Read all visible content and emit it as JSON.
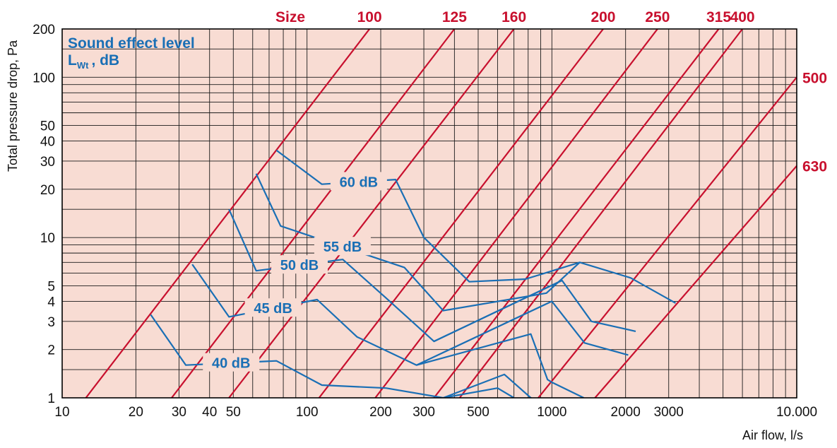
{
  "chart_data": {
    "type": "line",
    "title": "",
    "xlabel": "Air flow, l/s",
    "ylabel": "Total pressure drop, Pa",
    "xscale": "log",
    "yscale": "log",
    "xlim": [
      10,
      10000
    ],
    "ylim": [
      1,
      200
    ],
    "grid": true,
    "background_color": "#f8dcd3",
    "x_ticks": [
      10,
      20,
      30,
      40,
      50,
      100,
      200,
      300,
      500,
      1000,
      2000,
      3000,
      10000
    ],
    "x_tick_labels": [
      "10",
      "20",
      "30",
      "40",
      "50",
      "100",
      "200",
      "300",
      "500",
      "1000",
      "2000",
      "3000",
      "10.000"
    ],
    "y_ticks": [
      1,
      2,
      3,
      4,
      5,
      10,
      20,
      30,
      40,
      50,
      100,
      200
    ],
    "y_tick_labels": [
      "1",
      "2",
      "3",
      "4",
      "5",
      "10",
      "20",
      "30",
      "40",
      "50",
      "100",
      "200"
    ],
    "legend": {
      "line1": "Sound effect level",
      "line2_main": "L",
      "line2_sub": "Wt",
      "line2_rest": ", dB"
    },
    "size_header": "Size",
    "size_color": "#c8102e",
    "db_color": "#1a6fb5",
    "size_lines": [
      {
        "label": "100",
        "points": [
          [
            12.5,
            1
          ],
          [
            180,
            200
          ]
        ]
      },
      {
        "label": "125",
        "points": [
          [
            28,
            1
          ],
          [
            400,
            200
          ]
        ]
      },
      {
        "label": "160",
        "points": [
          [
            48,
            1
          ],
          [
            700,
            200
          ]
        ]
      },
      {
        "label": "200",
        "points": [
          [
            112,
            1
          ],
          [
            1620,
            200
          ]
        ]
      },
      {
        "label": "250",
        "points": [
          [
            190,
            1
          ],
          [
            2700,
            200
          ]
        ]
      },
      {
        "label": "315",
        "points": [
          [
            330,
            1
          ],
          [
            4800,
            200
          ]
        ]
      },
      {
        "label": "400",
        "points": [
          [
            420,
            1
          ],
          [
            6000,
            200
          ]
        ]
      },
      {
        "label": "500",
        "points": [
          [
            880,
            1
          ],
          [
            10000,
            100
          ]
        ]
      },
      {
        "label": "630",
        "points": [
          [
            1500,
            1
          ],
          [
            10000,
            28
          ]
        ]
      }
    ],
    "series": [
      {
        "name": "40 dB",
        "x": [
          23,
          32,
          75,
          115,
          210,
          360,
          600,
          700
        ],
        "y": [
          3.3,
          1.6,
          1.7,
          1.2,
          1.15,
          1.0,
          1.15,
          1.0
        ]
      },
      {
        "name": "40 dB",
        "x": [
          360,
          640,
          820,
          1000,
          1300
        ],
        "y": [
          1.0,
          1.4,
          1.0,
          0.9,
          0.9
        ]
      },
      {
        "name": "45 dB",
        "x": [
          34,
          48,
          110,
          160,
          280,
          820,
          960,
          1000,
          1350
        ],
        "y": [
          6.8,
          3.2,
          4.1,
          2.4,
          1.6,
          2.5,
          1.3,
          1.25,
          1.0
        ]
      },
      {
        "name": "45 dB",
        "x": [
          280,
          1000,
          1360,
          2050
        ],
        "y": [
          1.6,
          4.0,
          2.2,
          1.85
        ]
      },
      {
        "name": "50 dB",
        "x": [
          48,
          62,
          140,
          210,
          330,
          1100,
          1450,
          2200
        ],
        "y": [
          15,
          6.2,
          7.3,
          4.2,
          2.25,
          5.4,
          3.0,
          2.6
        ]
      },
      {
        "name": "50 dB",
        "x": [
          330,
          1100
        ],
        "y": [
          2.25,
          5.4
        ]
      },
      {
        "name": "55 dB",
        "x": [
          62,
          78,
          250,
          360,
          950,
          1300,
          2100,
          3200
        ],
        "y": [
          25,
          11.8,
          6.5,
          3.5,
          4.5,
          7.0,
          5.6,
          3.9
        ]
      },
      {
        "name": "60 dB",
        "x": [
          75,
          115,
          230,
          300,
          460,
          780,
          1300
        ],
        "y": [
          35,
          21.5,
          23,
          10,
          5.3,
          5.5,
          7.0
        ]
      }
    ]
  }
}
